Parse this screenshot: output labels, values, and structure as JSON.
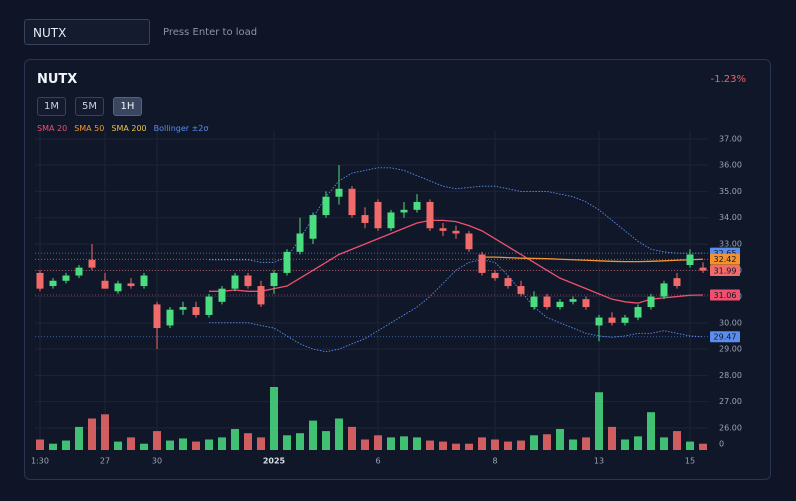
{
  "search": {
    "value": "NUTX",
    "hint": "Press Enter to load"
  },
  "panel": {
    "symbol": "NUTX",
    "change": "-1.23%",
    "intervals": [
      "1M",
      "5M",
      "1H"
    ],
    "active_interval": "1H"
  },
  "chart_data": {
    "type": "candlestick",
    "categories": [
      "1:30",
      null,
      null,
      null,
      null,
      "27",
      null,
      null,
      null,
      "30",
      null,
      null,
      null,
      null,
      null,
      null,
      null,
      null,
      "2025",
      null,
      null,
      null,
      null,
      null,
      null,
      null,
      "6",
      null,
      null,
      null,
      null,
      null,
      null,
      null,
      null,
      "8",
      null,
      null,
      null,
      null,
      null,
      null,
      null,
      "13",
      null,
      null,
      null,
      null,
      null,
      null,
      "15",
      null
    ],
    "up_color": "#4ade80",
    "down_color": "#f26b6b",
    "candles": [
      [
        31.9,
        32.0,
        31.2,
        31.3
      ],
      [
        31.4,
        31.7,
        31.3,
        31.6
      ],
      [
        31.6,
        31.9,
        31.5,
        31.8
      ],
      [
        31.8,
        32.2,
        31.7,
        32.1
      ],
      [
        32.4,
        33.0,
        32.0,
        32.1
      ],
      [
        31.6,
        31.9,
        31.3,
        31.3
      ],
      [
        31.2,
        31.6,
        31.1,
        31.5
      ],
      [
        31.5,
        31.7,
        31.3,
        31.4
      ],
      [
        31.4,
        31.9,
        31.3,
        31.8
      ],
      [
        30.7,
        30.8,
        29.0,
        29.8
      ],
      [
        29.9,
        30.6,
        29.8,
        30.5
      ],
      [
        30.5,
        30.8,
        30.3,
        30.6
      ],
      [
        30.6,
        30.8,
        30.2,
        30.3
      ],
      [
        30.3,
        31.1,
        30.2,
        31.0
      ],
      [
        30.8,
        31.4,
        30.7,
        31.3
      ],
      [
        31.3,
        31.9,
        31.2,
        31.8
      ],
      [
        31.8,
        31.9,
        31.3,
        31.4
      ],
      [
        31.4,
        31.6,
        30.6,
        30.7
      ],
      [
        31.4,
        32.0,
        31.1,
        31.9
      ],
      [
        31.9,
        32.8,
        31.8,
        32.7
      ],
      [
        32.7,
        34.0,
        32.6,
        33.4
      ],
      [
        33.2,
        34.2,
        33.0,
        34.1
      ],
      [
        34.1,
        35.0,
        34.0,
        34.8
      ],
      [
        34.8,
        36.0,
        34.5,
        35.1
      ],
      [
        35.1,
        35.2,
        34.0,
        34.1
      ],
      [
        34.1,
        34.4,
        33.6,
        33.8
      ],
      [
        34.6,
        34.7,
        33.5,
        33.6
      ],
      [
        33.6,
        34.3,
        33.5,
        34.2
      ],
      [
        34.2,
        34.6,
        34.0,
        34.3
      ],
      [
        34.3,
        34.9,
        34.2,
        34.6
      ],
      [
        34.6,
        34.7,
        33.5,
        33.6
      ],
      [
        33.6,
        33.8,
        33.3,
        33.5
      ],
      [
        33.5,
        33.7,
        33.2,
        33.4
      ],
      [
        33.4,
        33.5,
        32.7,
        32.8
      ],
      [
        32.6,
        32.7,
        31.8,
        31.9
      ],
      [
        31.9,
        32.0,
        31.6,
        31.7
      ],
      [
        31.7,
        31.8,
        31.3,
        31.4
      ],
      [
        31.4,
        31.6,
        31.0,
        31.1
      ],
      [
        30.6,
        31.2,
        30.5,
        31.0
      ],
      [
        31.0,
        31.1,
        30.5,
        30.6
      ],
      [
        30.6,
        30.9,
        30.5,
        30.8
      ],
      [
        30.8,
        31.0,
        30.7,
        30.9
      ],
      [
        30.9,
        31.0,
        30.5,
        30.6
      ],
      [
        29.9,
        30.3,
        29.3,
        30.2
      ],
      [
        30.2,
        30.4,
        29.9,
        30.0
      ],
      [
        30.0,
        30.3,
        29.9,
        30.2
      ],
      [
        30.2,
        30.7,
        30.1,
        30.6
      ],
      [
        30.6,
        31.1,
        30.5,
        31.0
      ],
      [
        31.0,
        31.6,
        30.9,
        31.5
      ],
      [
        31.7,
        31.9,
        31.3,
        31.4
      ],
      [
        32.2,
        32.8,
        32.1,
        32.6
      ],
      [
        32.1,
        32.3,
        31.9,
        31.99
      ]
    ],
    "volumes": [
      10,
      6,
      9,
      22,
      30,
      34,
      8,
      12,
      6,
      18,
      9,
      11,
      8,
      10,
      12,
      20,
      16,
      12,
      60,
      14,
      16,
      28,
      18,
      30,
      22,
      10,
      14,
      12,
      13,
      12,
      9,
      8,
      6,
      6,
      12,
      10,
      8,
      9,
      14,
      15,
      20,
      10,
      12,
      55,
      22,
      10,
      13,
      36,
      12,
      18,
      8,
      6
    ],
    "volume_lim": [
      0,
      60
    ],
    "volume_ticks": [
      0
    ],
    "ylim": [
      25.16,
      37.3
    ],
    "yticks": [
      {
        "value": 37,
        "label": "37.00"
      },
      {
        "value": 36,
        "label": "36.00"
      },
      {
        "value": 35,
        "label": "35.00"
      },
      {
        "value": 34,
        "label": "34.00"
      },
      {
        "value": 33,
        "label": "33.00"
      },
      {
        "value": 32,
        "label": "32.00"
      },
      {
        "value": 31,
        "label": "31.00"
      },
      {
        "value": 30,
        "label": "30.00"
      },
      {
        "value": 29,
        "label": "29.00"
      },
      {
        "value": 28,
        "label": "28.00"
      },
      {
        "value": 27,
        "label": "27.00"
      },
      {
        "value": 26,
        "label": "26.00"
      }
    ],
    "grid": true,
    "series": [
      {
        "name": "SMA 20",
        "color": "#f0506e",
        "values": [
          null,
          null,
          null,
          null,
          null,
          null,
          null,
          null,
          null,
          null,
          null,
          null,
          null,
          31.2,
          31.2,
          31.25,
          31.2,
          31.2,
          31.3,
          31.4,
          31.7,
          32.0,
          32.3,
          32.6,
          32.8,
          33.0,
          33.2,
          33.4,
          33.6,
          33.8,
          33.9,
          33.9,
          33.85,
          33.7,
          33.5,
          33.2,
          32.9,
          32.6,
          32.3,
          32.0,
          31.7,
          31.5,
          31.3,
          31.1,
          30.9,
          30.8,
          30.75,
          30.9,
          30.95,
          31.0,
          31.05,
          31.06
        ]
      },
      {
        "name": "SMA 50",
        "color": "#f5922f",
        "values": [
          null,
          null,
          null,
          null,
          null,
          null,
          null,
          null,
          null,
          null,
          null,
          null,
          null,
          null,
          null,
          null,
          null,
          null,
          null,
          null,
          null,
          null,
          null,
          null,
          null,
          null,
          null,
          null,
          null,
          null,
          null,
          null,
          null,
          null,
          32.5,
          32.5,
          32.48,
          32.46,
          32.45,
          32.44,
          32.42,
          32.4,
          32.38,
          32.36,
          32.34,
          32.33,
          32.33,
          32.34,
          32.36,
          32.38,
          32.4,
          32.42
        ]
      },
      {
        "name": "SMA 200",
        "color": "#e6c34a"
      },
      {
        "name": "Bollinger ±2σ",
        "color": "#5b8def",
        "upper": [
          null,
          null,
          null,
          null,
          null,
          null,
          null,
          null,
          null,
          null,
          null,
          null,
          null,
          32.4,
          32.4,
          32.4,
          32.4,
          32.3,
          32.3,
          32.5,
          33.2,
          34.0,
          34.8,
          35.4,
          35.7,
          35.8,
          35.9,
          35.9,
          35.8,
          35.6,
          35.4,
          35.2,
          35.1,
          35.15,
          35.2,
          35.2,
          35.1,
          35.0,
          35.0,
          35.0,
          34.9,
          34.8,
          34.6,
          34.3,
          33.9,
          33.5,
          33.1,
          32.8,
          32.7,
          32.65,
          32.65,
          32.65
        ],
        "lower": [
          null,
          null,
          null,
          null,
          null,
          null,
          null,
          null,
          null,
          null,
          null,
          null,
          null,
          30.0,
          30.0,
          30.0,
          30.0,
          29.9,
          29.8,
          29.5,
          29.2,
          29.0,
          28.9,
          29.0,
          29.2,
          29.4,
          29.7,
          30.0,
          30.3,
          30.6,
          31.0,
          31.5,
          32.0,
          32.3,
          32.4,
          32.3,
          31.8,
          31.2,
          30.6,
          30.2,
          30.0,
          29.8,
          29.6,
          29.5,
          29.45,
          29.5,
          29.6,
          29.6,
          29.7,
          29.6,
          29.5,
          29.47
        ]
      }
    ],
    "price_tags": [
      {
        "value": 32.65,
        "color": "#5b8def"
      },
      {
        "value": 32.42,
        "color": "#f5922f"
      },
      {
        "value": 31.99,
        "color": "#f26b6b"
      },
      {
        "value": 31.06,
        "color": "#f0506e"
      },
      {
        "value": 29.47,
        "color": "#5b8def"
      }
    ]
  }
}
